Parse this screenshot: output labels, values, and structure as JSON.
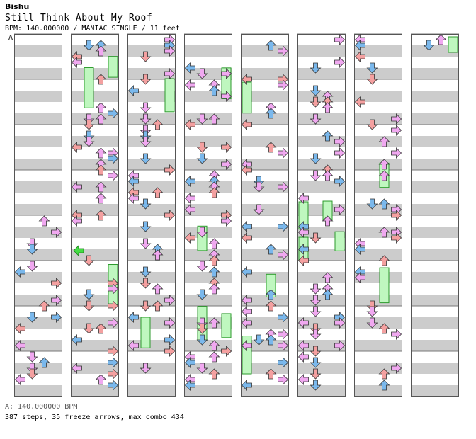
{
  "song": {
    "artist": "Bishu",
    "title": "Still Think About My Roof",
    "bpm_line": "BPM: 140.000000 / MANIAC SINGLE / 11 feet",
    "section_label": "A",
    "bpm_changes": "A: 140.000000 BPM",
    "stats": "387 steps, 35 freeze arrows, max combo 434"
  },
  "colors": {
    "stripe_gray": "#cccccc",
    "column_border": "#555555",
    "quarter_note": "#f4a0a0",
    "eighth_note": "#7ab8ec",
    "sixteenth_note": "#f0a8f0",
    "freeze_body": "#bff7bf",
    "freeze_border": "#2c9a2c",
    "mine_green": "#44dd44"
  },
  "chart_data": {
    "type": "step-chart",
    "columns": 8,
    "lanes": [
      "left",
      "down",
      "up",
      "right"
    ],
    "measures_per_column": 8
  }
}
